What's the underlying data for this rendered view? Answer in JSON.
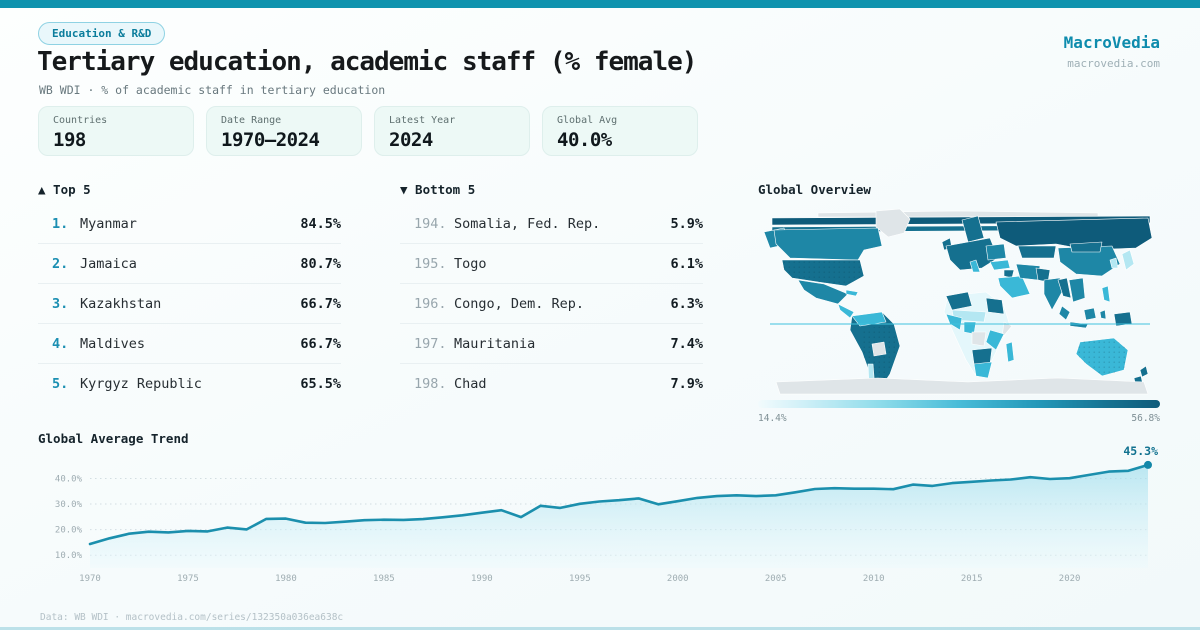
{
  "header": {
    "badge": "Education & R&D",
    "title": "Tertiary education, academic staff (% female)",
    "subtitle": "WB WDI · % of academic staff in tertiary education",
    "brand": "MacroVedia",
    "brand_url": "macrovedia.com"
  },
  "stats": [
    {
      "label": "Countries",
      "value": "198"
    },
    {
      "label": "Date Range",
      "value": "1970–2024"
    },
    {
      "label": "Latest Year",
      "value": "2024"
    },
    {
      "label": "Global Avg",
      "value": "40.0%"
    }
  ],
  "top5": {
    "heading": "▲ Top 5",
    "rows": [
      {
        "rank": "1.",
        "name": "Myanmar",
        "value": "84.5%"
      },
      {
        "rank": "2.",
        "name": "Jamaica",
        "value": "80.7%"
      },
      {
        "rank": "3.",
        "name": "Kazakhstan",
        "value": "66.7%"
      },
      {
        "rank": "4.",
        "name": "Maldives",
        "value": "66.7%"
      },
      {
        "rank": "5.",
        "name": "Kyrgyz Republic",
        "value": "65.5%"
      }
    ]
  },
  "bottom5": {
    "heading": "▼ Bottom 5",
    "rows": [
      {
        "rank": "194.",
        "name": "Somalia, Fed. Rep.",
        "value": "5.9%"
      },
      {
        "rank": "195.",
        "name": "Togo",
        "value": "6.1%"
      },
      {
        "rank": "196.",
        "name": "Congo, Dem. Rep.",
        "value": "6.3%"
      },
      {
        "rank": "197.",
        "name": "Mauritania",
        "value": "7.4%"
      },
      {
        "rank": "198.",
        "name": "Chad",
        "value": "7.9%"
      }
    ]
  },
  "map": {
    "heading": "Global Overview",
    "legend_min": "14.4%",
    "legend_max": "56.8%",
    "palette": {
      "no_data": "#dfe5e8",
      "scale": [
        "#e4f7fb",
        "#b4e7f2",
        "#3ab8d7",
        "#1e87a6",
        "#15708f",
        "#0e5b7a"
      ]
    }
  },
  "trend": {
    "heading": "Global Average Trend"
  },
  "chart_data": {
    "type": "area",
    "title": "Global Average Trend",
    "xlabel": "",
    "ylabel": "",
    "x_start": 1970,
    "x_end": 2024,
    "ylim": [
      5,
      48
    ],
    "grid": "dotted-horizontal",
    "line_color": "#1b8fad",
    "end_label": "45.3%",
    "x_ticks": [
      1970,
      1975,
      1980,
      1985,
      1990,
      1995,
      2000,
      2005,
      2010,
      2015,
      2020
    ],
    "y_ticks": [
      {
        "v": 40,
        "label": "40.0%"
      },
      {
        "v": 30,
        "label": "30.0%"
      },
      {
        "v": 20,
        "label": "20.0%"
      },
      {
        "v": 10,
        "label": "10.0%"
      }
    ],
    "values": [
      14.4,
      16.6,
      18.4,
      19.2,
      18.9,
      19.5,
      19.3,
      20.8,
      20.1,
      24.2,
      24.3,
      22.7,
      22.6,
      23.1,
      23.7,
      23.9,
      23.8,
      24.1,
      24.8,
      25.6,
      26.6,
      27.6,
      24.9,
      29.3,
      28.5,
      30.1,
      31.0,
      31.5,
      32.2,
      29.9,
      31.1,
      32.4,
      33.1,
      33.4,
      33.1,
      33.4,
      34.6,
      35.9,
      36.2,
      36.0,
      36.0,
      35.8,
      37.6,
      37.1,
      38.2,
      38.7,
      39.2,
      39.6,
      40.5,
      39.8,
      40.1,
      41.4,
      42.7,
      43.0,
      45.3
    ]
  },
  "footer": {
    "text": "Data: WB WDI · macrovedia.com/series/132350a036ea638c"
  }
}
